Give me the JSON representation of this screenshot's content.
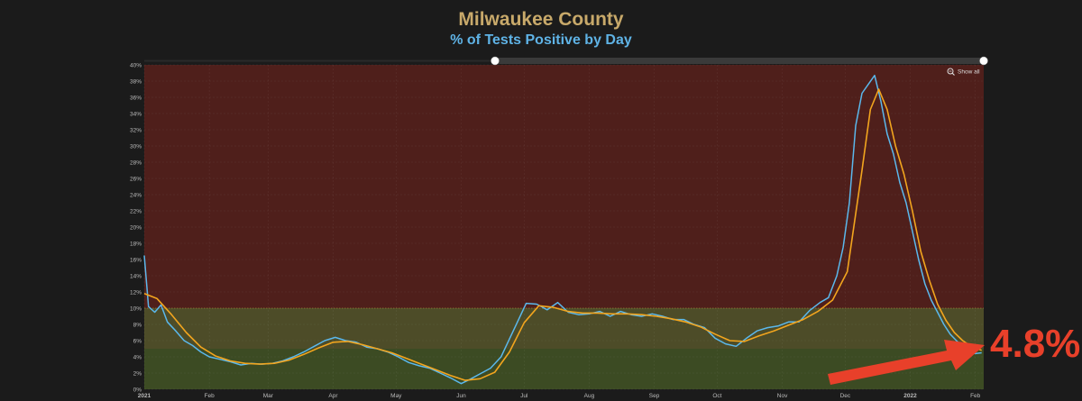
{
  "title": "Milwaukee County",
  "subtitle": "% of Tests Positive by Day",
  "show_all_label": "Show all",
  "callout_value": "4.8%",
  "colors": {
    "title": "#c8a96a",
    "subtitle": "#5fb3e6",
    "daily_line": "#5bb8ec",
    "average_line": "#f2a51e",
    "zone_high": "#4f1f1b",
    "zone_mid": "#4d4c28",
    "zone_low": "#3c4b23",
    "callout": "#e8402a"
  },
  "chart_data": {
    "type": "line",
    "title": "% of Tests Positive by Day",
    "xlabel": "",
    "ylabel": "",
    "x_range": [
      "2021-01-01",
      "2022-02-05"
    ],
    "ylim": [
      0,
      40
    ],
    "y_ticks": [
      "0%",
      "2%",
      "4%",
      "6%",
      "8%",
      "10%",
      "12%",
      "14%",
      "16%",
      "18%",
      "20%",
      "22%",
      "24%",
      "26%",
      "28%",
      "30%",
      "32%",
      "34%",
      "36%",
      "38%",
      "40%"
    ],
    "x_ticks": [
      {
        "label": "2021",
        "date": "2021-01-01"
      },
      {
        "label": "Feb",
        "date": "2021-02-01"
      },
      {
        "label": "Mar",
        "date": "2021-03-01"
      },
      {
        "label": "Apr",
        "date": "2021-04-01"
      },
      {
        "label": "May",
        "date": "2021-05-01"
      },
      {
        "label": "Jun",
        "date": "2021-06-01"
      },
      {
        "label": "Jul",
        "date": "2021-07-01"
      },
      {
        "label": "Aug",
        "date": "2021-08-01"
      },
      {
        "label": "Sep",
        "date": "2021-09-01"
      },
      {
        "label": "Oct",
        "date": "2021-10-01"
      },
      {
        "label": "Nov",
        "date": "2021-11-01"
      },
      {
        "label": "Dec",
        "date": "2021-12-01"
      },
      {
        "label": "2022",
        "date": "2022-01-01"
      },
      {
        "label": "Feb",
        "date": "2022-02-01"
      }
    ],
    "bands": [
      {
        "from": 0,
        "to": 5
      },
      {
        "from": 5,
        "to": 10
      },
      {
        "from": 10,
        "to": 40
      }
    ],
    "series": [
      {
        "key": "daily",
        "points": [
          [
            "2021-01-01",
            16.5
          ],
          [
            "2021-01-03",
            10.2
          ],
          [
            "2021-01-06",
            9.5
          ],
          [
            "2021-01-09",
            10.4
          ],
          [
            "2021-01-12",
            8.3
          ],
          [
            "2021-01-16",
            7.2
          ],
          [
            "2021-01-20",
            6.0
          ],
          [
            "2021-01-24",
            5.4
          ],
          [
            "2021-01-28",
            4.6
          ],
          [
            "2021-02-01",
            4.0
          ],
          [
            "2021-02-06",
            3.7
          ],
          [
            "2021-02-11",
            3.4
          ],
          [
            "2021-02-16",
            3.0
          ],
          [
            "2021-02-21",
            3.2
          ],
          [
            "2021-02-26",
            3.1
          ],
          [
            "2021-03-03",
            3.2
          ],
          [
            "2021-03-08",
            3.5
          ],
          [
            "2021-03-13",
            4.0
          ],
          [
            "2021-03-18",
            4.6
          ],
          [
            "2021-03-23",
            5.3
          ],
          [
            "2021-03-28",
            6.0
          ],
          [
            "2021-04-02",
            6.4
          ],
          [
            "2021-04-07",
            6.0
          ],
          [
            "2021-04-12",
            5.8
          ],
          [
            "2021-04-17",
            5.2
          ],
          [
            "2021-04-22",
            5.0
          ],
          [
            "2021-04-27",
            4.6
          ],
          [
            "2021-05-02",
            4.0
          ],
          [
            "2021-05-07",
            3.3
          ],
          [
            "2021-05-12",
            2.9
          ],
          [
            "2021-05-17",
            2.6
          ],
          [
            "2021-05-22",
            2.0
          ],
          [
            "2021-05-27",
            1.4
          ],
          [
            "2021-06-01",
            0.7
          ],
          [
            "2021-06-05",
            1.2
          ],
          [
            "2021-06-10",
            1.9
          ],
          [
            "2021-06-15",
            2.6
          ],
          [
            "2021-06-20",
            4.0
          ],
          [
            "2021-06-24",
            6.2
          ],
          [
            "2021-06-28",
            8.4
          ],
          [
            "2021-07-02",
            10.6
          ],
          [
            "2021-07-07",
            10.5
          ],
          [
            "2021-07-12",
            9.8
          ],
          [
            "2021-07-17",
            10.7
          ],
          [
            "2021-07-22",
            9.5
          ],
          [
            "2021-07-27",
            9.2
          ],
          [
            "2021-08-01",
            9.3
          ],
          [
            "2021-08-06",
            9.6
          ],
          [
            "2021-08-11",
            9.0
          ],
          [
            "2021-08-16",
            9.6
          ],
          [
            "2021-08-21",
            9.2
          ],
          [
            "2021-08-26",
            9.0
          ],
          [
            "2021-08-31",
            9.3
          ],
          [
            "2021-09-05",
            9.0
          ],
          [
            "2021-09-10",
            8.6
          ],
          [
            "2021-09-15",
            8.6
          ],
          [
            "2021-09-20",
            8.0
          ],
          [
            "2021-09-25",
            7.6
          ],
          [
            "2021-09-30",
            6.3
          ],
          [
            "2021-10-05",
            5.6
          ],
          [
            "2021-10-10",
            5.3
          ],
          [
            "2021-10-15",
            6.3
          ],
          [
            "2021-10-20",
            7.2
          ],
          [
            "2021-10-25",
            7.6
          ],
          [
            "2021-10-30",
            7.8
          ],
          [
            "2021-11-04",
            8.3
          ],
          [
            "2021-11-09",
            8.3
          ],
          [
            "2021-11-14",
            9.7
          ],
          [
            "2021-11-19",
            10.7
          ],
          [
            "2021-11-23",
            11.3
          ],
          [
            "2021-11-27",
            14.0
          ],
          [
            "2021-11-30",
            17.5
          ],
          [
            "2021-12-03",
            23.0
          ],
          [
            "2021-12-06",
            32.5
          ],
          [
            "2021-12-09",
            36.5
          ],
          [
            "2021-12-12",
            37.6
          ],
          [
            "2021-12-15",
            38.7
          ],
          [
            "2021-12-18",
            35.5
          ],
          [
            "2021-12-21",
            31.5
          ],
          [
            "2021-12-24",
            29.0
          ],
          [
            "2021-12-27",
            25.5
          ],
          [
            "2021-12-30",
            23.0
          ],
          [
            "2022-01-02",
            19.5
          ],
          [
            "2022-01-05",
            16.0
          ],
          [
            "2022-01-08",
            13.0
          ],
          [
            "2022-01-11",
            11.0
          ],
          [
            "2022-01-14",
            9.5
          ],
          [
            "2022-01-17",
            8.0
          ],
          [
            "2022-01-20",
            6.8
          ],
          [
            "2022-01-23",
            6.0
          ],
          [
            "2022-01-26",
            5.3
          ],
          [
            "2022-01-29",
            4.5
          ],
          [
            "2022-02-01",
            4.4
          ],
          [
            "2022-02-04",
            4.5
          ]
        ]
      },
      {
        "key": "average",
        "points": [
          [
            "2021-01-01",
            11.8
          ],
          [
            "2021-01-07",
            11.2
          ],
          [
            "2021-01-14",
            9.2
          ],
          [
            "2021-01-21",
            7.0
          ],
          [
            "2021-01-28",
            5.2
          ],
          [
            "2021-02-04",
            4.1
          ],
          [
            "2021-02-11",
            3.5
          ],
          [
            "2021-02-18",
            3.2
          ],
          [
            "2021-02-25",
            3.1
          ],
          [
            "2021-03-04",
            3.2
          ],
          [
            "2021-03-11",
            3.6
          ],
          [
            "2021-03-18",
            4.3
          ],
          [
            "2021-03-25",
            5.1
          ],
          [
            "2021-04-01",
            5.8
          ],
          [
            "2021-04-08",
            5.9
          ],
          [
            "2021-04-15",
            5.5
          ],
          [
            "2021-04-22",
            5.0
          ],
          [
            "2021-04-29",
            4.5
          ],
          [
            "2021-05-06",
            3.8
          ],
          [
            "2021-05-13",
            3.1
          ],
          [
            "2021-05-20",
            2.4
          ],
          [
            "2021-05-27",
            1.7
          ],
          [
            "2021-06-03",
            1.1
          ],
          [
            "2021-06-10",
            1.3
          ],
          [
            "2021-06-17",
            2.1
          ],
          [
            "2021-06-24",
            4.6
          ],
          [
            "2021-07-01",
            8.2
          ],
          [
            "2021-07-08",
            10.3
          ],
          [
            "2021-07-15",
            10.1
          ],
          [
            "2021-07-22",
            9.6
          ],
          [
            "2021-07-29",
            9.4
          ],
          [
            "2021-08-05",
            9.4
          ],
          [
            "2021-08-12",
            9.3
          ],
          [
            "2021-08-19",
            9.3
          ],
          [
            "2021-08-26",
            9.2
          ],
          [
            "2021-09-02",
            9.0
          ],
          [
            "2021-09-09",
            8.7
          ],
          [
            "2021-09-16",
            8.3
          ],
          [
            "2021-09-23",
            7.7
          ],
          [
            "2021-09-30",
            6.8
          ],
          [
            "2021-10-07",
            6.0
          ],
          [
            "2021-10-14",
            5.9
          ],
          [
            "2021-10-21",
            6.6
          ],
          [
            "2021-10-28",
            7.2
          ],
          [
            "2021-11-04",
            7.9
          ],
          [
            "2021-11-11",
            8.6
          ],
          [
            "2021-11-18",
            9.6
          ],
          [
            "2021-11-25",
            11.0
          ],
          [
            "2021-12-02",
            14.5
          ],
          [
            "2021-12-09",
            27.0
          ],
          [
            "2021-12-13",
            34.5
          ],
          [
            "2021-12-17",
            37.0
          ],
          [
            "2021-12-21",
            34.5
          ],
          [
            "2021-12-25",
            30.0
          ],
          [
            "2021-12-29",
            26.5
          ],
          [
            "2022-01-02",
            22.0
          ],
          [
            "2022-01-06",
            17.0
          ],
          [
            "2022-01-10",
            13.5
          ],
          [
            "2022-01-14",
            10.5
          ],
          [
            "2022-01-18",
            8.5
          ],
          [
            "2022-01-22",
            7.0
          ],
          [
            "2022-01-26",
            6.0
          ],
          [
            "2022-01-30",
            5.3
          ],
          [
            "2022-02-04",
            4.8
          ]
        ]
      }
    ]
  }
}
